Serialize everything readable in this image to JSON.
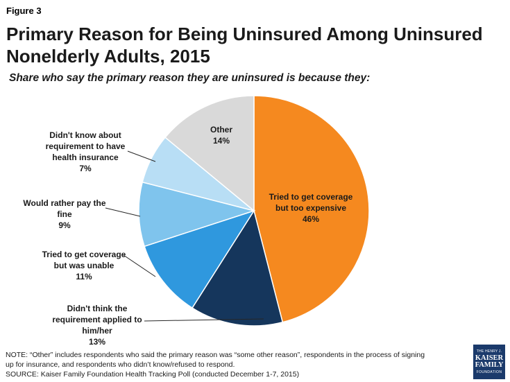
{
  "figure_label": "Figure 3",
  "title_line1": "Primary Reason for Being Uninsured Among Uninsured",
  "title_line2": "Nonelderly Adults, 2015",
  "subtitle": "Share who say the primary reason they are uninsured is because they:",
  "note_line1": "NOTE: “Other” includes respondents who said the primary reason was “some other reason”, respondents in the process of signing",
  "note_line2": "up for insurance, and respondents who didn’t know/refused to respond.",
  "source": "SOURCE: Kaiser Family Foundation Health Tracking Poll (conducted December 1-7, 2015)",
  "logo": {
    "top": "THE HENRY J.",
    "line1": "KAISER",
    "line2": "FAMILY",
    "bottom": "FOUNDATION"
  },
  "chart_data": {
    "type": "pie",
    "title": "Primary Reason for Being Uninsured Among Uninsured Nonelderly Adults, 2015",
    "slices": [
      {
        "name": "tried-expensive",
        "label_lines": [
          "Tried to get coverage",
          "but too expensive"
        ],
        "value": 46,
        "value_label": "46%",
        "color": "#f5891f"
      },
      {
        "name": "didnt-think-applied",
        "label_lines": [
          "Didn't think the",
          "requirement applied to",
          "him/her"
        ],
        "value": 13,
        "value_label": "13%",
        "color": "#15365c"
      },
      {
        "name": "tried-unable",
        "label_lines": [
          "Tried to get coverage",
          "but was unable"
        ],
        "value": 11,
        "value_label": "11%",
        "color": "#2f98de"
      },
      {
        "name": "rather-pay-fine",
        "label_lines": [
          "Would rather pay the",
          "fine"
        ],
        "value": 9,
        "value_label": "9%",
        "color": "#7fc4ed"
      },
      {
        "name": "didnt-know-requirement",
        "label_lines": [
          "Didn't know about",
          "requirement to have",
          "health insurance"
        ],
        "value": 7,
        "value_label": "7%",
        "color": "#b8def5"
      },
      {
        "name": "other",
        "label_lines": [
          "Other"
        ],
        "value": 14,
        "value_label": "14%",
        "color": "#d9d9d9"
      }
    ]
  }
}
